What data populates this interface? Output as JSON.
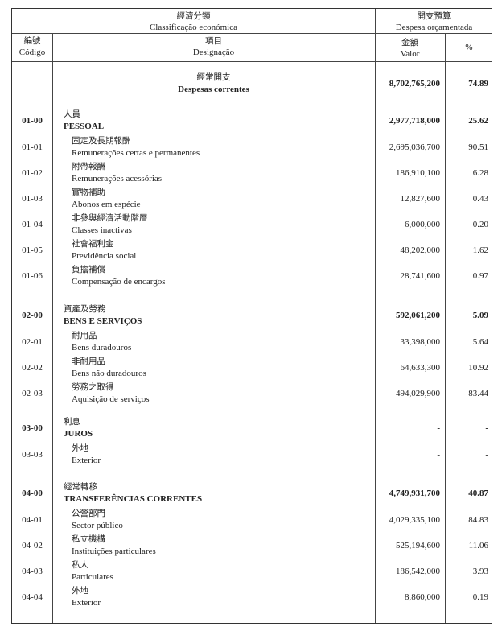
{
  "header": {
    "classification_zh": "經濟分類",
    "classification_pt": "Classificação económica",
    "budget_zh": "開支預算",
    "budget_pt": "Despesa orçamentada",
    "code_zh": "編號",
    "code_pt": "Código",
    "designation_zh": "項目",
    "designation_pt": "Designação",
    "value_zh": "金額",
    "value_pt": "Valor",
    "pct": "%"
  },
  "rows": [
    {
      "type": "sec",
      "code": "",
      "zh": "經常開支",
      "pt": "Despesas correntes",
      "value": "8,702,765,200",
      "pct": "74.89"
    },
    {
      "type": "group",
      "code": "01-00",
      "zh": "人員",
      "pt": "PESSOAL",
      "value": "2,977,718,000",
      "pct": "25.62"
    },
    {
      "type": "item",
      "code": "01-01",
      "zh": "固定及長期報酬",
      "pt": "Remunerações certas e permanentes",
      "value": "2,695,036,700",
      "pct": "90.51"
    },
    {
      "type": "item",
      "code": "01-02",
      "zh": "附帶報酬",
      "pt": "Remunerações acessórias",
      "value": "186,910,100",
      "pct": "6.28"
    },
    {
      "type": "item",
      "code": "01-03",
      "zh": "實物補助",
      "pt": "Abonos em espécie",
      "value": "12,827,600",
      "pct": "0.43"
    },
    {
      "type": "item",
      "code": "01-04",
      "zh": "非參與經濟活動階層",
      "pt": "Classes inactivas",
      "value": "6,000,000",
      "pct": "0.20"
    },
    {
      "type": "item",
      "code": "01-05",
      "zh": "社會福利金",
      "pt": "Previdência social",
      "value": "48,202,000",
      "pct": "1.62"
    },
    {
      "type": "item",
      "code": "01-06",
      "zh": "負擔補償",
      "pt": "Compensação de encargos",
      "value": "28,741,600",
      "pct": "0.97"
    },
    {
      "type": "group",
      "code": "02-00",
      "zh": "資產及勞務",
      "pt": "BENS E SERVIÇOS",
      "value": "592,061,200",
      "pct": "5.09"
    },
    {
      "type": "item",
      "code": "02-01",
      "zh": "耐用品",
      "pt": "Bens duradouros",
      "value": "33,398,000",
      "pct": "5.64"
    },
    {
      "type": "item",
      "code": "02-02",
      "zh": "非耐用品",
      "pt": "Bens não duradouros",
      "value": "64,633,300",
      "pct": "10.92"
    },
    {
      "type": "item",
      "code": "02-03",
      "zh": "勞務之取得",
      "pt": "Aquisição de serviços",
      "value": "494,029,900",
      "pct": "83.44"
    },
    {
      "type": "group",
      "code": "03-00",
      "zh": "利息",
      "pt": "JUROS",
      "value": "-",
      "pct": "-"
    },
    {
      "type": "item",
      "code": "03-03",
      "zh": "外地",
      "pt": "Exterior",
      "value": "-",
      "pct": "-"
    },
    {
      "type": "group",
      "code": "04-00",
      "zh": "經常轉移",
      "pt": "TRANSFERÊNCIAS CORRENTES",
      "value": "4,749,931,700",
      "pct": "40.87"
    },
    {
      "type": "item",
      "code": "04-01",
      "zh": "公營部門",
      "pt": "Sector público",
      "value": "4,029,335,100",
      "pct": "84.83"
    },
    {
      "type": "item",
      "code": "04-02",
      "zh": "私立機構",
      "pt": "Instituições particulares",
      "value": "525,194,600",
      "pct": "11.06"
    },
    {
      "type": "item",
      "code": "04-03",
      "zh": "私人",
      "pt": "Particulares",
      "value": "186,542,000",
      "pct": "3.93"
    },
    {
      "type": "item",
      "code": "04-04",
      "zh": "外地",
      "pt": "Exterior",
      "value": "8,860,000",
      "pct": "0.19"
    }
  ]
}
